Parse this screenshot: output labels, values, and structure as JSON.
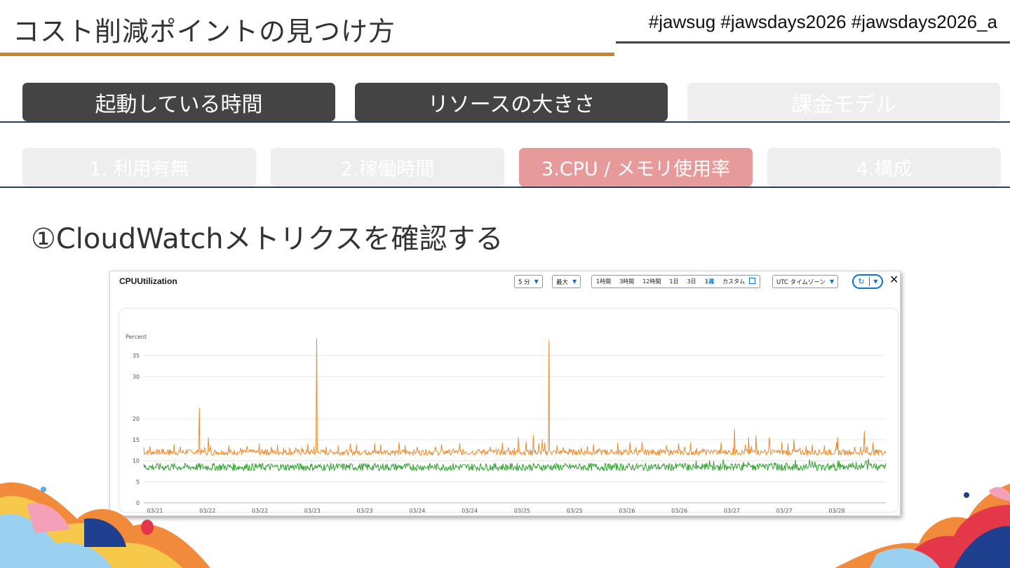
{
  "slide": {
    "title": "コスト削減ポイントの見つけ方",
    "hashtags": "#jawsug #jawsdays2026 #jawsdays2026_a"
  },
  "category_tabs": [
    {
      "label": "起動している時間",
      "active": true
    },
    {
      "label": "リソースの大きさ",
      "active": true
    },
    {
      "label": "課金モデル",
      "active": false
    }
  ],
  "sub_tabs": [
    {
      "label": "1. 利用有無",
      "active": false
    },
    {
      "label": "2.稼働時間",
      "active": false
    },
    {
      "label": "3.CPU / メモリ使用率",
      "active": true
    },
    {
      "label": "4.構成",
      "active": false
    }
  ],
  "step_heading": "①CloudWatchメトリクスを確認する",
  "metric_panel": {
    "title": "CPUUtilization",
    "period": "5 分",
    "statistic": "最大",
    "time_ranges": [
      "1時間",
      "3時間",
      "12時間",
      "1日",
      "3日",
      "1週"
    ],
    "selected_range": "1週",
    "custom_label": "カスタム",
    "timezone": "UTC タイムゾーン",
    "refresh_icon": "refresh-icon",
    "close_icon": "close-icon"
  },
  "chart_data": {
    "type": "line",
    "ylabel": "Percent",
    "y_ticks": [
      0,
      5,
      10,
      15,
      20,
      30,
      35
    ],
    "ylim": [
      0,
      40
    ],
    "x_tick_labels": [
      "03/21",
      "03/22",
      "03/22",
      "03/23",
      "03/23",
      "03/24",
      "03/24",
      "03/25",
      "03/25",
      "03/26",
      "03/26",
      "03/27",
      "03/27",
      "03/28"
    ],
    "grid": "horizontal",
    "series": [
      {
        "color": "#ec8a2c",
        "baseline": 12,
        "spikes": [
          {
            "t": 0.075,
            "value": 22.5
          },
          {
            "t": 0.087,
            "value": 15.5
          },
          {
            "t": 0.233,
            "value": 39
          },
          {
            "t": 0.505,
            "value": 15.5
          },
          {
            "t": 0.515,
            "value": 14.5
          },
          {
            "t": 0.525,
            "value": 16
          },
          {
            "t": 0.537,
            "value": 15
          },
          {
            "t": 0.546,
            "value": 38.5
          },
          {
            "t": 0.796,
            "value": 17.5
          },
          {
            "t": 0.815,
            "value": 15.5
          },
          {
            "t": 0.825,
            "value": 16
          },
          {
            "t": 0.843,
            "value": 15.5
          },
          {
            "t": 0.876,
            "value": 15
          },
          {
            "t": 0.935,
            "value": 15.5
          },
          {
            "t": 0.971,
            "value": 17
          }
        ]
      },
      {
        "color": "#2ca02c",
        "baseline": 8.5
      }
    ]
  },
  "colors": {
    "title_rule": "#c8842a",
    "active_category": "#444444",
    "active_subtab": "#e69a9a",
    "inactive_tab": "#eeeeee"
  }
}
